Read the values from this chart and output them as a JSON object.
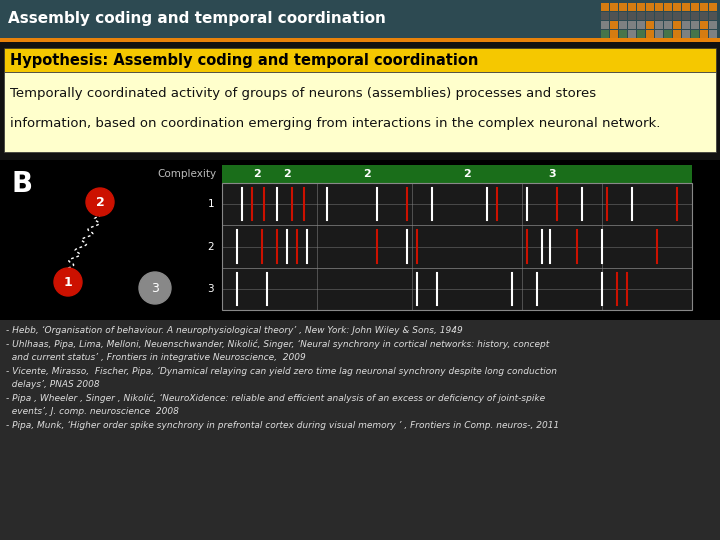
{
  "title": "Assembly coding and temporal coordination",
  "title_bg": "#2d4a52",
  "title_color": "#ffffff",
  "title_fontsize": 11,
  "hypothesis_title": "Hypothesis: Assembly coding and temporal coordination",
  "hypothesis_bg": "#f5c800",
  "hypothesis_box_bg": "#ffffcc",
  "hypothesis_line1": "Temporally coordinated activity of groups of neurons (assemblies) processes and stores",
  "hypothesis_line2": "information, based on coordination emerging from interactions in the complex neuronal network.",
  "hypothesis_text_fontsize": 9.5,
  "main_bg": "#111111",
  "references": [
    "- Hebb, ‘Organisation of behaviour. A neurophysiological theory’ , New York: John Wiley & Sons, 1949",
    "- Uhlhaas, Pipa, Lima, Melloni, Neuenschwander, Nikolić, Singer, ‘Neural synchrony in cortical networks: history, concept",
    "  and current status’ , Frontiers in integrative Neuroscience,  2009",
    "- Vicente, Mirasso,  Fischer, Pipa, ‘Dynamical relaying can yield zero time lag neuronal synchrony despite long conduction",
    "  delays’, PNAS 2008",
    "- Pipa , Wheeler , Singer , Nikolić, ‘NeuroXidence: reliable and efficient analysis of an excess or deficiency of joint-spike",
    "  events’, J. comp. neuroscience  2008",
    "- Pipa, Munk, ‘Higher order spike synchrony in prefrontal cortex during visual memory ’ , Frontiers in Comp. neuros-, 2011"
  ],
  "ref_fontsize": 6.5,
  "ref_color": "#dddddd",
  "orange_bar_color": "#e8820a",
  "complexity_label": "Complexity",
  "complexity_bg": "#1a6e1a",
  "neuron_label": "B",
  "grid_colors_row0": [
    "#4a7a4a",
    "#e8820a",
    "#4a7a4a",
    "#888888",
    "#4a7a4a",
    "#e8820a",
    "#888888",
    "#4a7a4a",
    "#e8820a",
    "#888888",
    "#4a7a4a",
    "#e8820a",
    "#888888"
  ],
  "grid_colors_row1": [
    "#888888",
    "#e8820a",
    "#888888",
    "#888888",
    "#888888",
    "#e8820a",
    "#888888",
    "#888888",
    "#e8820a",
    "#888888",
    "#888888",
    "#e8820a",
    "#888888"
  ],
  "grid_colors_row2": [
    "#555555",
    "#555555",
    "#555555",
    "#555555",
    "#555555",
    "#555555",
    "#555555",
    "#555555",
    "#555555",
    "#555555",
    "#555555",
    "#555555",
    "#555555"
  ],
  "grid_colors_row3": [
    "#e8820a",
    "#e8820a",
    "#e8820a",
    "#e8820a",
    "#e8820a",
    "#e8820a",
    "#e8820a",
    "#e8820a",
    "#e8820a",
    "#e8820a",
    "#e8820a",
    "#e8820a",
    "#e8820a"
  ]
}
